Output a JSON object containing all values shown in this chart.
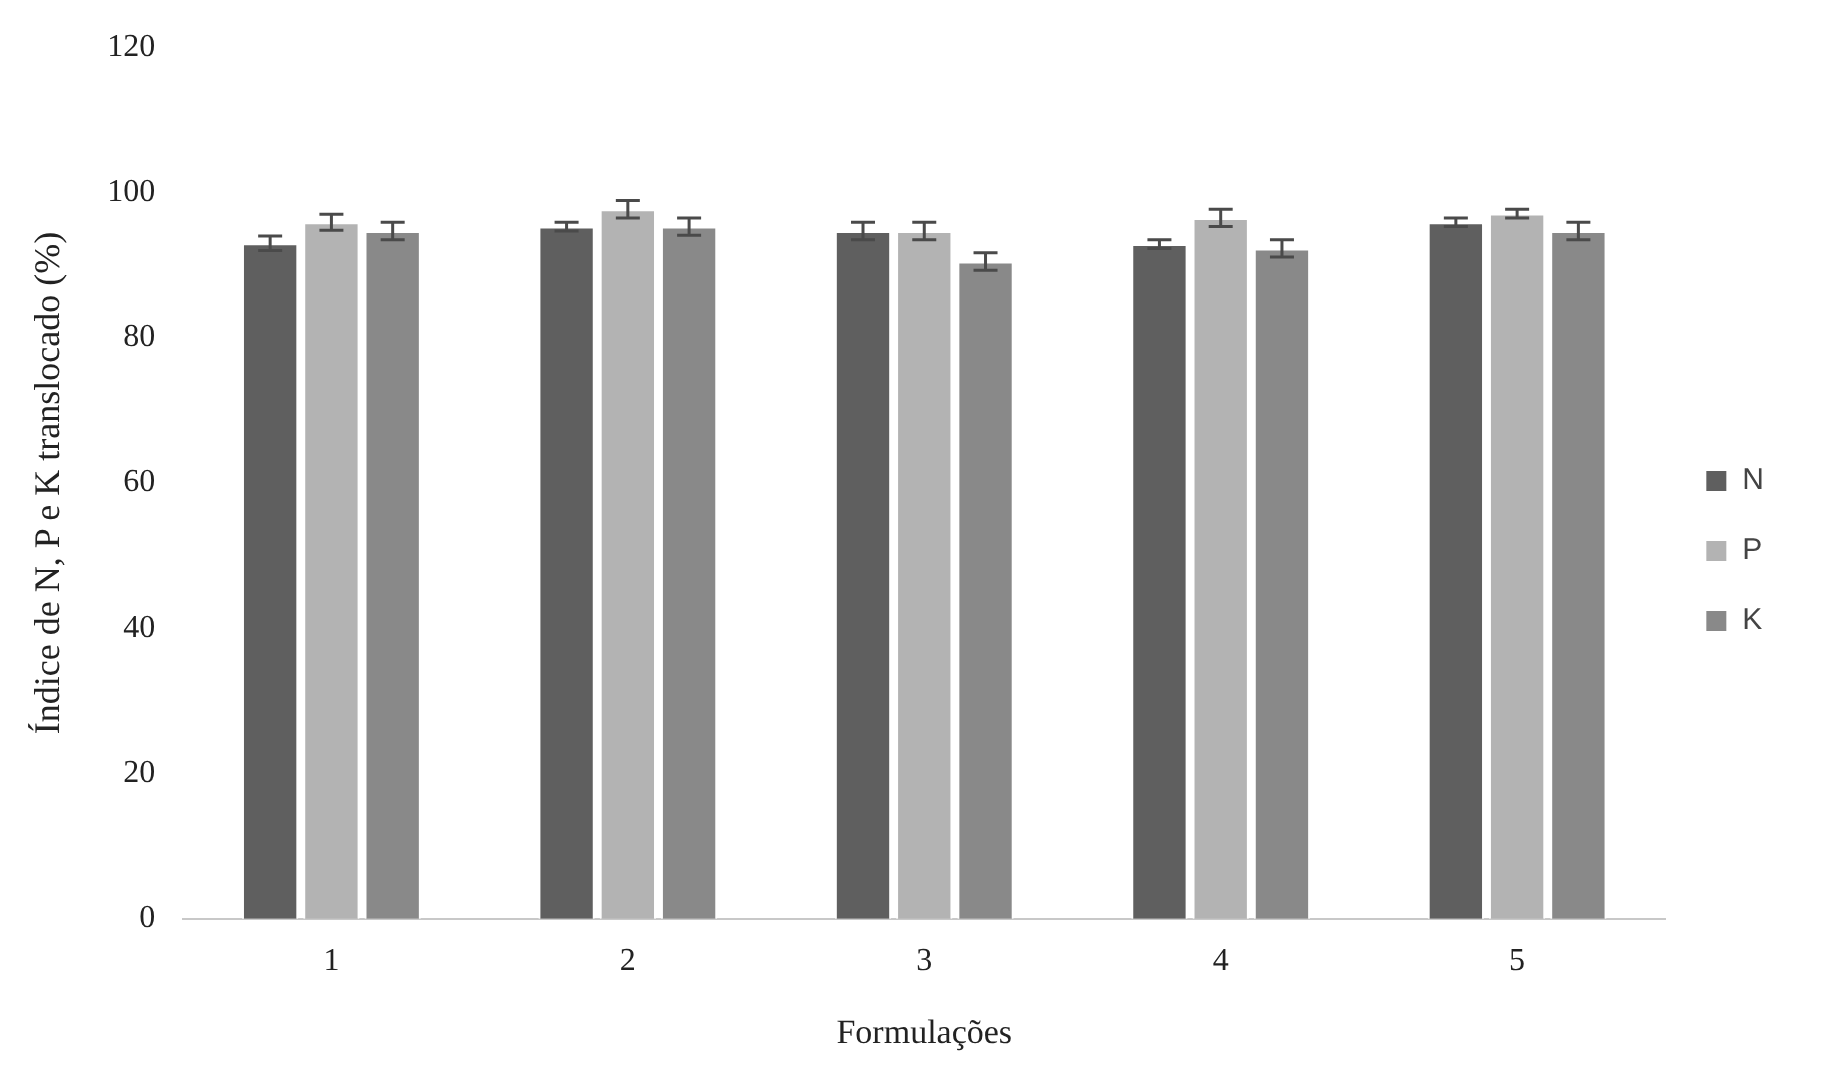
{
  "chart_data": {
    "type": "bar",
    "xlabel": "Formulações",
    "ylabel": "Índice de N, P e K translocado (%)",
    "categories": [
      "1",
      "2",
      "3",
      "4",
      "5"
    ],
    "series": [
      {
        "name": "N",
        "color": "#5f5f5f",
        "values": [
          93.0,
          95.3,
          94.7,
          92.9,
          95.9
        ],
        "errors": [
          1.0,
          0.6,
          1.2,
          0.6,
          0.6
        ]
      },
      {
        "name": "P",
        "color": "#b3b3b3",
        "values": [
          95.9,
          97.7,
          94.7,
          96.5,
          97.1
        ],
        "errors": [
          1.1,
          1.2,
          1.2,
          1.2,
          0.6
        ]
      },
      {
        "name": "K",
        "color": "#898989",
        "values": [
          94.7,
          95.3,
          90.5,
          92.3,
          94.7
        ],
        "errors": [
          1.2,
          1.2,
          1.2,
          1.2,
          1.2
        ]
      }
    ],
    "ylim": [
      0,
      120
    ],
    "yticks": [
      0,
      20,
      40,
      60,
      80,
      100,
      120
    ],
    "grid": false,
    "legend": "right"
  }
}
